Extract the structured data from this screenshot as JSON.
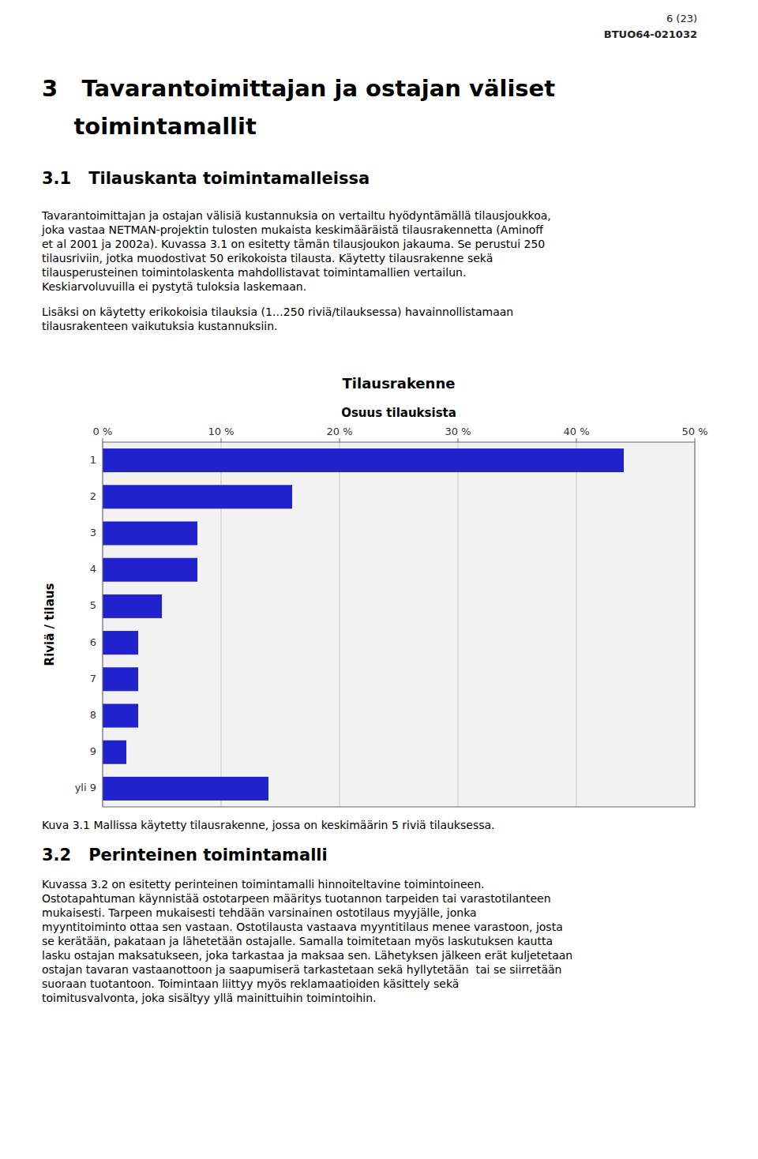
{
  "page": {
    "page_num": "6 (23)",
    "doc_id": "BTUO64-021032",
    "heading1": [
      "3   Tavarantoimittajan ja ostajan väliset",
      "    toimintamallit"
    ],
    "heading2": "3.1   Tilauskanta toimintamalleissa",
    "body1": [
      "Tavarantoimittajan ja ostajan välisiä kustannuksia on vertailtu hyödyntämällä tilausjoukkoa,",
      "joka vastaa NETMAN-projektin tulosten mukaista keskimääräistä tilausrakennetta (Aminoff",
      "et al 2001 ja 2002a). Kuvassa 3.1 on esitetty tämän tilausjoukon jakauma. Se perustui 250",
      "tilausriviin, jotka muodostivat 50 erikokoista tilausta. Käytetty tilausrakenne sekä",
      "tilausperusteinen toimintolaskenta mahdollistavat toimintamallien vertailun.",
      "Keskiarvoluvuilla ei pystytä tuloksia laskemaan."
    ],
    "body2": [
      "Lisäksi on käytetty erikokoisia tilauksia (1…250 riviä/tilauksessa) havainnollistamaan",
      "tilausrakenteen vaikutuksia kustannuksiin."
    ],
    "caption": "Kuva 3.1 Mallissa käytetty tilausrakenne, jossa on keskimäärin 5 riviä tilauksessa.",
    "heading3": "3.2   Perinteinen toimintamalli",
    "body3": [
      "Kuvassa 3.2 on esitetty perinteinen toimintamalli hinnoiteltavine toimintoineen.",
      "Ostotapahtuman käynnistää ostotarpeen määritys tuotannon tarpeiden tai varastotilanteen",
      "mukaisesti. Tarpeen mukaisesti tehdään varsinainen ostotilaus myyjälle, jonka",
      "myyntitoiminto ottaa sen vastaan. Ostotilausta vastaava myyntitilaus menee varastoon, josta",
      "se kerätään, pakataan ja lähetetään ostajalle. Samalla toimitetaan myös laskutuksen kautta",
      "lasku ostajan maksatukseen, joka tarkastaa ja maksaa sen. Lähetyksen jälkeen erät kuljetetaan",
      "ostajan tavaran vastaanottoon ja saapumiserä tarkastetaan sekä hyllytetään  tai se siirretään",
      "suoraan tuotantoon. Toimintaan liittyy myös reklamaatioiden käsittely sekä",
      "toimitusvalvonta, joka sisältyy yllä mainittuihin toimintoihin."
    ]
  },
  "chart_data": {
    "type": "bar",
    "orientation": "horizontal",
    "title": "Tilausrakenne",
    "xlabel": "Osuus tilauksista",
    "ylabel": "Riviä / tilaus",
    "categories": [
      "1",
      "2",
      "3",
      "4",
      "5",
      "6",
      "7",
      "8",
      "9",
      "yli 9"
    ],
    "values": [
      44,
      16,
      8,
      8,
      5,
      3,
      3,
      3,
      2,
      14
    ],
    "color": "#2222CC",
    "xlim": [
      0,
      50
    ],
    "xticks": [
      {
        "value": 0,
        "label": "0 %"
      },
      {
        "value": 10,
        "label": "10 %"
      },
      {
        "value": 20,
        "label": "20 %"
      },
      {
        "value": 30,
        "label": "30 %"
      },
      {
        "value": 40,
        "label": "40 %"
      },
      {
        "value": 50,
        "label": "50 %"
      }
    ],
    "grid": true
  }
}
